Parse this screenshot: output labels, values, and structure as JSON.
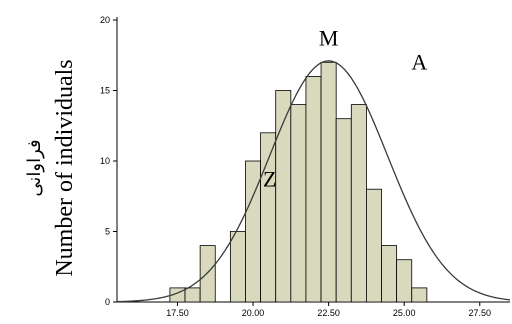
{
  "chart_data": {
    "type": "bar",
    "ylabel": "Number of individuals",
    "ylabel_alt": "فراوانی",
    "xlim": [
      15.5,
      28.5
    ],
    "ylim": [
      0,
      20
    ],
    "x_ticks": [
      "17.50",
      "20.00",
      "22.50",
      "25.00",
      "27.50"
    ],
    "y_ticks": [
      "0",
      "5",
      "10",
      "15",
      "20"
    ],
    "bins": [
      {
        "start": 17.25,
        "end": 17.75,
        "count": 1
      },
      {
        "start": 17.75,
        "end": 18.25,
        "count": 1
      },
      {
        "start": 18.25,
        "end": 18.75,
        "count": 4
      },
      {
        "start": 18.75,
        "end": 19.25,
        "count": 0
      },
      {
        "start": 19.25,
        "end": 19.75,
        "count": 5
      },
      {
        "start": 19.75,
        "end": 20.25,
        "count": 10
      },
      {
        "start": 20.25,
        "end": 20.75,
        "count": 12
      },
      {
        "start": 20.75,
        "end": 21.25,
        "count": 15
      },
      {
        "start": 21.25,
        "end": 21.75,
        "count": 14
      },
      {
        "start": 21.75,
        "end": 22.25,
        "count": 16
      },
      {
        "start": 22.25,
        "end": 22.75,
        "count": 17
      },
      {
        "start": 22.75,
        "end": 23.25,
        "count": 13
      },
      {
        "start": 23.25,
        "end": 23.75,
        "count": 14
      },
      {
        "start": 23.75,
        "end": 24.25,
        "count": 8
      },
      {
        "start": 24.25,
        "end": 24.75,
        "count": 4
      },
      {
        "start": 24.75,
        "end": 25.25,
        "count": 3
      },
      {
        "start": 25.25,
        "end": 25.75,
        "count": 1
      }
    ],
    "normal_curve": {
      "peak_x": 22.5,
      "peak_y": 17.1,
      "sd": 1.95
    },
    "annotations": [
      {
        "text": "M",
        "x": 22.5,
        "y": 18.2
      },
      {
        "text": "A",
        "x": 25.5,
        "y": 16.5
      },
      {
        "text": "Z",
        "x": 20.55,
        "y": 8.2
      }
    ],
    "bar_fill": "#d9d9bd",
    "bar_stroke": "#000000",
    "curve_color": "#3a3a3a"
  }
}
